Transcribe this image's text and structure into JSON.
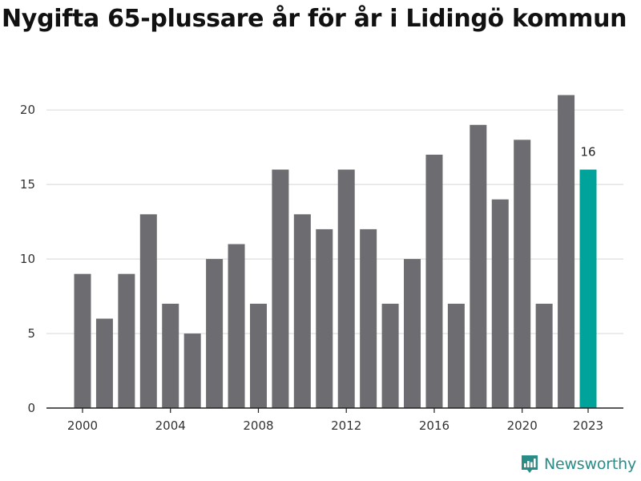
{
  "chart_data": {
    "type": "bar",
    "title": "Nygifta 65-plussare år för år i Lidingö kommun",
    "xlabel": "",
    "ylabel": "",
    "categories": [
      "2000",
      "2001",
      "2002",
      "2003",
      "2004",
      "2005",
      "2006",
      "2007",
      "2008",
      "2009",
      "2010",
      "2011",
      "2012",
      "2013",
      "2014",
      "2015",
      "2016",
      "2017",
      "2018",
      "2019",
      "2020",
      "2021",
      "2022",
      "2023"
    ],
    "values": [
      9,
      6,
      9,
      13,
      7,
      5,
      10,
      11,
      7,
      16,
      13,
      12,
      16,
      12,
      7,
      10,
      17,
      7,
      19,
      14,
      18,
      7,
      21,
      16
    ],
    "highlight_category": "2023",
    "highlight_value_label": "16",
    "x_tick_labels": [
      "2000",
      "2004",
      "2008",
      "2012",
      "2016",
      "2020",
      "2023"
    ],
    "y_ticks": [
      0,
      5,
      10,
      15,
      20
    ],
    "ylim": [
      0,
      22
    ],
    "grid": true,
    "colors": {
      "bar": "#6d6c71",
      "highlight": "#00a39a",
      "grid": "#dddddd",
      "axis": "#222222"
    }
  },
  "branding": {
    "name": "Newsworthy",
    "color": "#2a8c86"
  }
}
